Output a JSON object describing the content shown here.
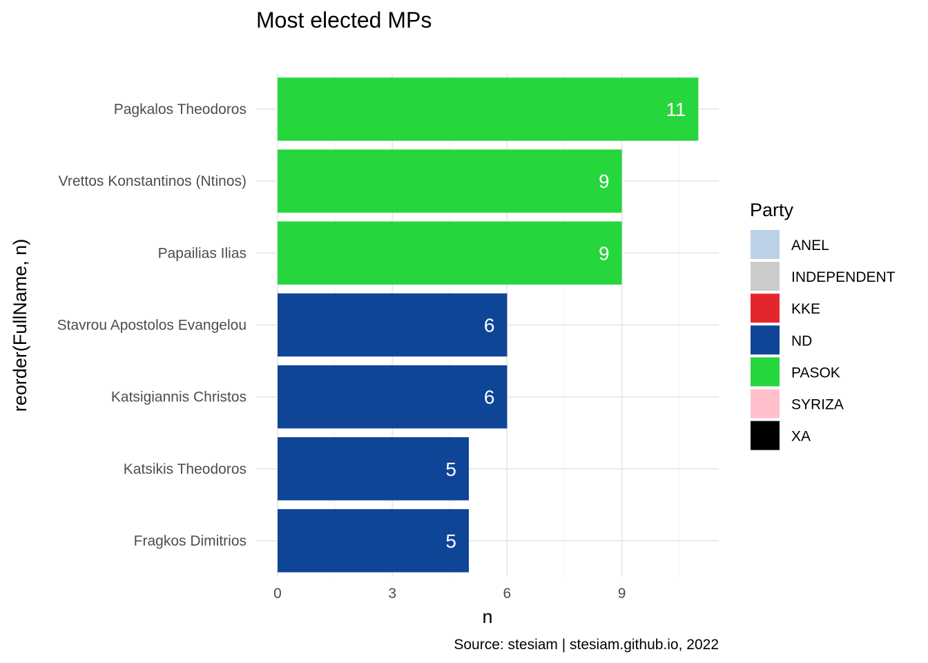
{
  "chart_data": {
    "type": "bar",
    "orientation": "horizontal",
    "title": "Most elected MPs",
    "xlabel": "n",
    "ylabel": "reorder(FullName, n)",
    "caption": "Source: stesiam | stesiam.github.io, 2022",
    "xlim": [
      0,
      11.55
    ],
    "x_ticks": [
      "0",
      "3",
      "6",
      "9"
    ],
    "grid": true,
    "categories": [
      "Pagkalos Theodoros",
      "Vrettos Konstantinos (Ntinos)",
      "Papailias Ilias",
      "Stavrou Apostolos Evangelou",
      "Katsigiannis Christos",
      "Katsikis Theodoros",
      "Fragkos Dimitrios"
    ],
    "values": [
      11,
      9,
      9,
      6,
      6,
      5,
      5
    ],
    "data_labels": [
      "11",
      "9",
      "9",
      "6",
      "6",
      "5",
      "5"
    ],
    "bar_party": [
      "PASOK",
      "PASOK",
      "PASOK",
      "ND",
      "ND",
      "ND",
      "ND"
    ],
    "legend": {
      "title": "Party",
      "position": "right",
      "items": [
        {
          "label": "ANEL",
          "color": "#bcd1e8"
        },
        {
          "label": "INDEPENDENT",
          "color": "#cbcbcb"
        },
        {
          "label": "KKE",
          "color": "#e3262d"
        },
        {
          "label": "ND",
          "color": "#0f4597"
        },
        {
          "label": "PASOK",
          "color": "#26d63d"
        },
        {
          "label": "SYRIZA",
          "color": "#ffc0cb"
        },
        {
          "label": "XA",
          "color": "#000000"
        }
      ]
    }
  }
}
